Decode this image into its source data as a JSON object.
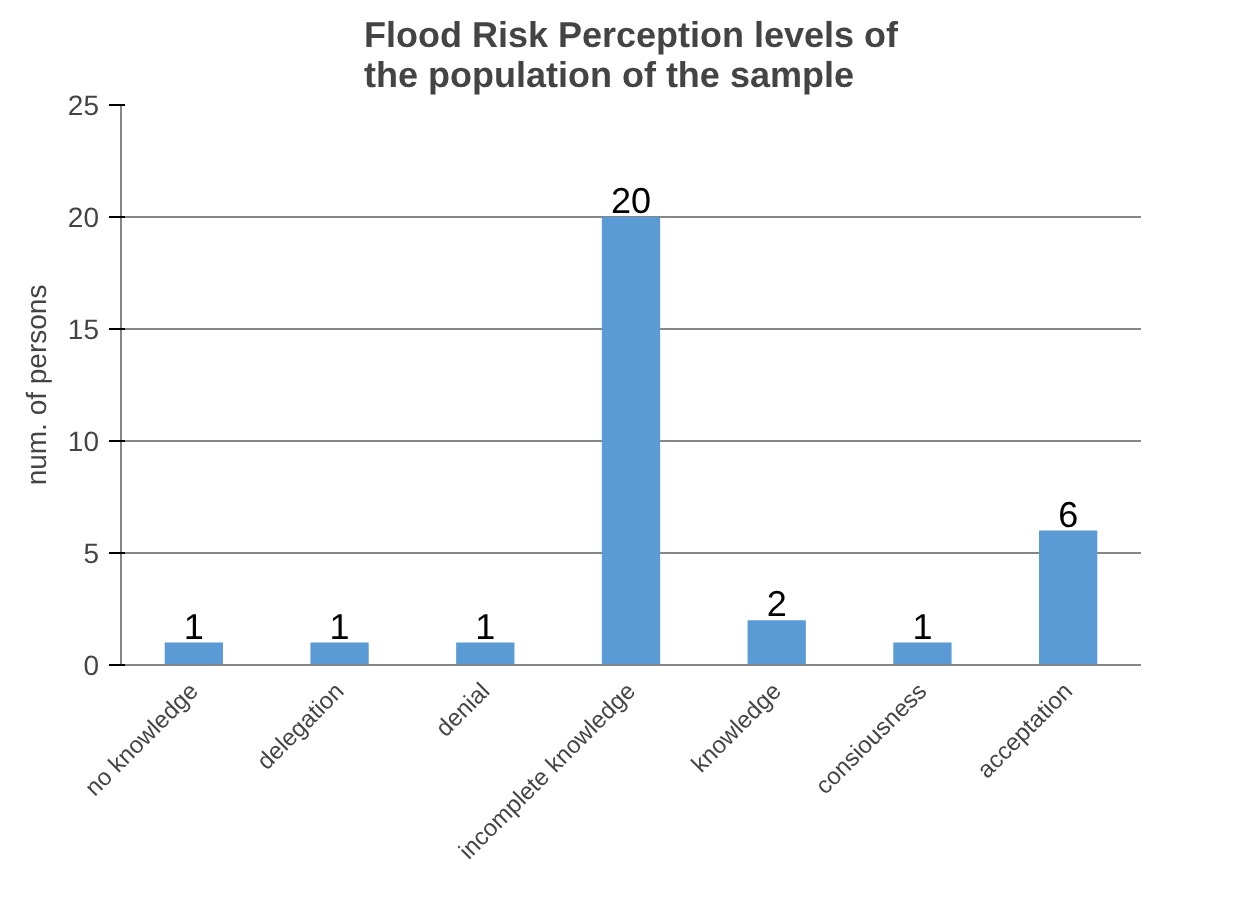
{
  "chart_data": {
    "type": "bar",
    "title": "Flood Risk Perception levels of the population of the sample",
    "ylabel": "num. of persons",
    "categories": [
      "no knowledge",
      "delegation",
      "denial",
      "incomplete knowledge",
      "knowledge",
      "consiousness",
      "acceptation"
    ],
    "values": [
      1,
      1,
      1,
      20,
      2,
      1,
      6
    ],
    "color": "#5b9bd5",
    "ylim": [
      0,
      25
    ],
    "yticks": [
      0,
      5,
      10,
      15,
      20,
      25
    ],
    "grid": "y",
    "data_labels": true
  }
}
